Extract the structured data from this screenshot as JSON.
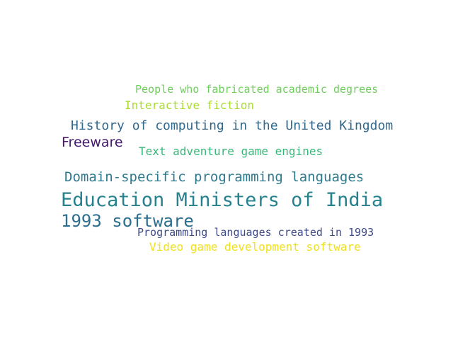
{
  "words": [
    {
      "text": "People who fabricated academic degrees",
      "color": "#6fcf5c"
    },
    {
      "text": "Interactive fiction",
      "color": "#aadc32"
    },
    {
      "text": "History of computing in the United Kingdom",
      "color": "#31688e"
    },
    {
      "text": "Freeware",
      "color": "#46196e"
    },
    {
      "text": "Text adventure game engines",
      "color": "#35b779"
    },
    {
      "text": "Domain-specific programming languages",
      "color": "#2b7a8e"
    },
    {
      "text": "Education Ministers of India",
      "color": "#26828e"
    },
    {
      "text": "1993 software",
      "color": "#2c6e8e"
    },
    {
      "text": "Programming languages created in 1993",
      "color": "#3e4a89"
    },
    {
      "text": "Video game development software",
      "color": "#f0e01f"
    }
  ]
}
